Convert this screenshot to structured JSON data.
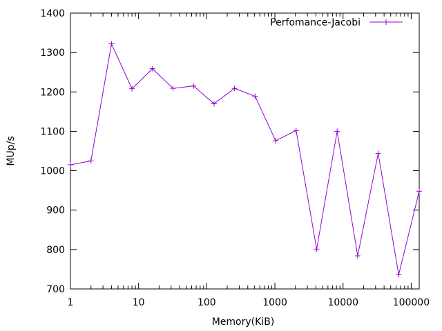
{
  "chart_data": {
    "type": "line",
    "title": "",
    "xlabel": "Memory(KiB)",
    "ylabel": "MUp/s",
    "xscale": "log",
    "xlim": [
      1,
      131072
    ],
    "ylim": [
      700,
      1400
    ],
    "grid": false,
    "legend_position": "top-right",
    "x_ticks": [
      1,
      10,
      100,
      1000,
      10000,
      100000
    ],
    "x_tick_labels": [
      "1",
      "10",
      "100",
      "1000",
      "10000",
      "100000"
    ],
    "y_ticks": [
      700,
      800,
      900,
      1000,
      1100,
      1200,
      1300,
      1400
    ],
    "y_tick_labels": [
      "700",
      "800",
      "900",
      "1000",
      "1100",
      "1200",
      "1300",
      "1400"
    ],
    "series": [
      {
        "name": "Perfomance-Jacobi",
        "color": "#9400d3",
        "marker": "plus",
        "x": [
          1,
          2,
          4,
          8,
          16,
          32,
          64,
          128,
          256,
          512,
          1024,
          2048,
          4096,
          8192,
          16384,
          32768,
          65536,
          131072
        ],
        "y": [
          1015,
          1025,
          1322,
          1208,
          1259,
          1209,
          1215,
          1170,
          1209,
          1189,
          1076,
          1102,
          801,
          1100,
          784,
          1044,
          736,
          948
        ]
      }
    ]
  }
}
